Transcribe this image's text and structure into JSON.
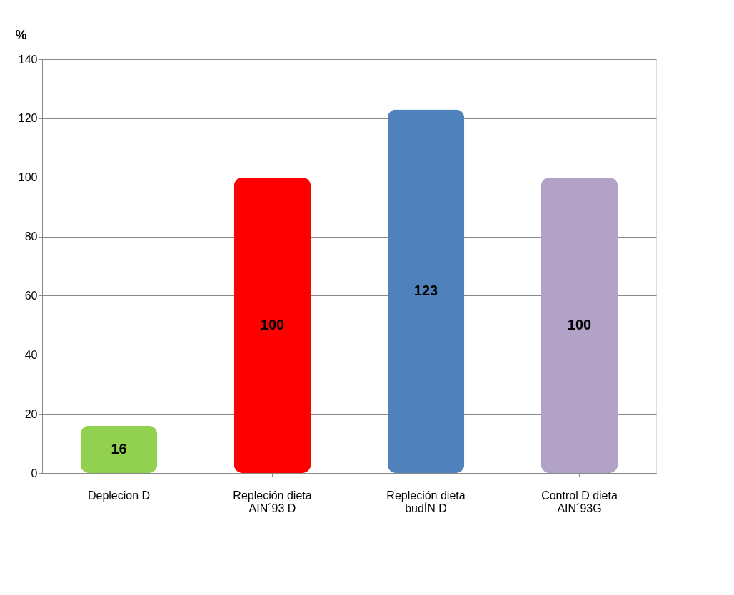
{
  "chart_data": {
    "type": "bar",
    "ylabel": "%",
    "categories": [
      "Deplecion D",
      "Repleción dieta\nAIN´93 D",
      "Repleción dieta\nbudÍN D",
      "Control D dieta\nAIN´93G"
    ],
    "values": [
      16,
      100,
      123,
      100
    ],
    "colors": [
      "#92d050",
      "#ff0000",
      "#4f81bd",
      "#b3a2c7"
    ],
    "ylim": [
      0,
      140
    ],
    "yticks": [
      0,
      20,
      40,
      60,
      80,
      100,
      120,
      140
    ],
    "grid": "y",
    "data_labels": true
  }
}
